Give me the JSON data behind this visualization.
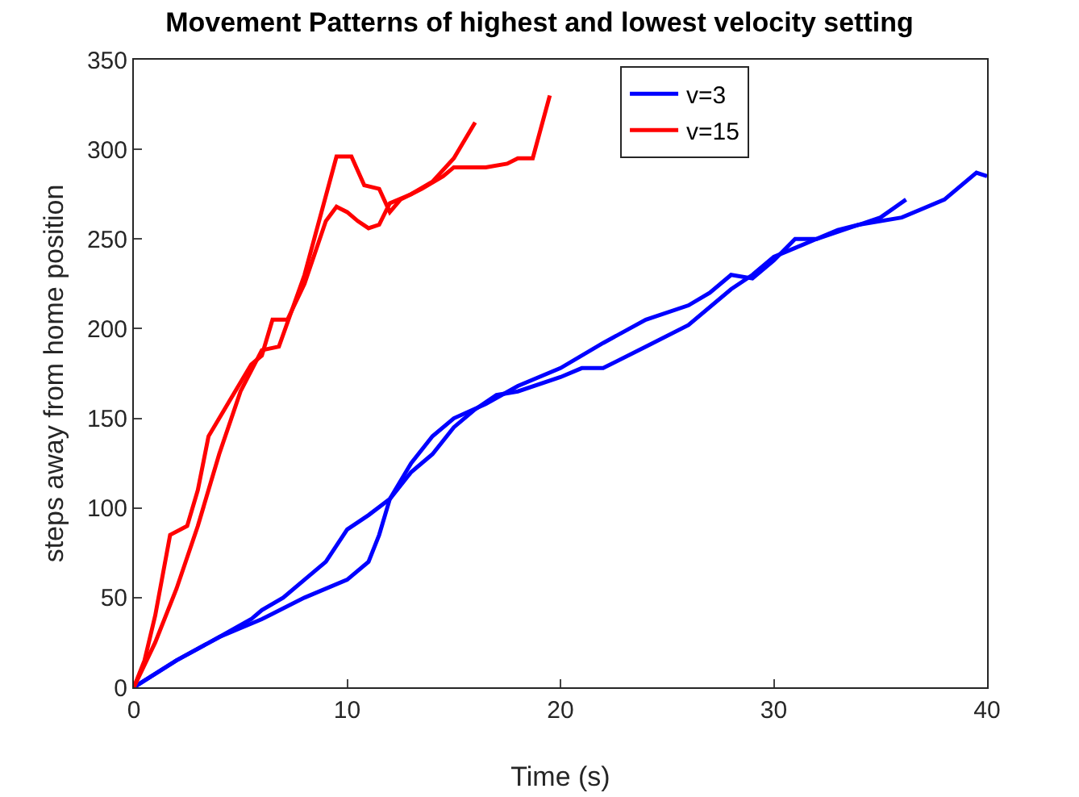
{
  "chart_data": {
    "type": "line",
    "title": "Movement Patterns of highest and lowest velocity setting",
    "xlabel": "Time (s)",
    "ylabel": "steps away from home position",
    "xlim": [
      0,
      40
    ],
    "xticks": [
      0,
      10,
      20,
      30,
      40
    ],
    "ylim": [
      0,
      350
    ],
    "yticks": [
      0,
      50,
      100,
      150,
      200,
      250,
      300,
      350
    ],
    "grid": false,
    "legend": "top right",
    "marker": "none",
    "line_style": "solid",
    "series": [
      {
        "name": "v=3",
        "color": "#0000ff",
        "x": [
          0,
          2,
          4,
          5.5,
          6,
          7,
          8,
          9,
          10,
          11,
          12,
          13,
          14,
          15,
          16.5,
          18,
          20,
          22,
          24,
          26,
          27,
          28,
          29,
          30,
          31,
          32,
          33,
          34,
          35,
          36.2
        ],
        "values": [
          0,
          15,
          28,
          38,
          43,
          50,
          60,
          70,
          88,
          96,
          105,
          125,
          140,
          150,
          158,
          168,
          178,
          192,
          205,
          213,
          220,
          230,
          228,
          238,
          250,
          250,
          255,
          258,
          262,
          272
        ]
      },
      {
        "name": "v=15",
        "color": "#ff0000",
        "x": [
          0,
          0.5,
          1,
          1.7,
          2.5,
          3,
          3.5,
          4.5,
          5.5,
          6,
          6.5,
          7.2,
          8,
          9,
          9.5,
          10,
          10.5,
          11,
          11.5,
          12,
          13,
          14,
          15,
          16
        ],
        "values": [
          0,
          15,
          40,
          85,
          90,
          110,
          140,
          160,
          180,
          185,
          205,
          205,
          225,
          260,
          268,
          265,
          260,
          256,
          258,
          270,
          275,
          282,
          295,
          315
        ]
      },
      {
        "color": "#0000ff",
        "x": [
          0,
          2,
          4,
          6,
          8,
          10,
          11,
          11.5,
          12,
          13,
          14,
          15,
          16,
          17,
          18,
          20,
          21,
          22,
          24,
          26,
          28,
          29,
          30,
          31,
          32,
          34,
          36,
          38,
          39.5,
          40
        ],
        "values": [
          0,
          15,
          28,
          38,
          50,
          60,
          70,
          85,
          105,
          120,
          130,
          145,
          155,
          163,
          165,
          173,
          178,
          178,
          190,
          202,
          222,
          230,
          240,
          245,
          250,
          258,
          262,
          272,
          287,
          285
        ]
      },
      {
        "color": "#ff0000",
        "x": [
          0,
          1,
          2,
          3,
          4,
          5,
          6,
          6.8,
          8,
          9.5,
          10.2,
          10.8,
          11.5,
          12,
          12.5,
          13.5,
          14.5,
          15,
          16.5,
          17.5,
          18,
          18.7,
          19.5
        ],
        "values": [
          0,
          25,
          55,
          90,
          130,
          165,
          188,
          190,
          230,
          296,
          296,
          280,
          278,
          265,
          272,
          278,
          285,
          290,
          290,
          292,
          295,
          295,
          330
        ]
      }
    ]
  }
}
